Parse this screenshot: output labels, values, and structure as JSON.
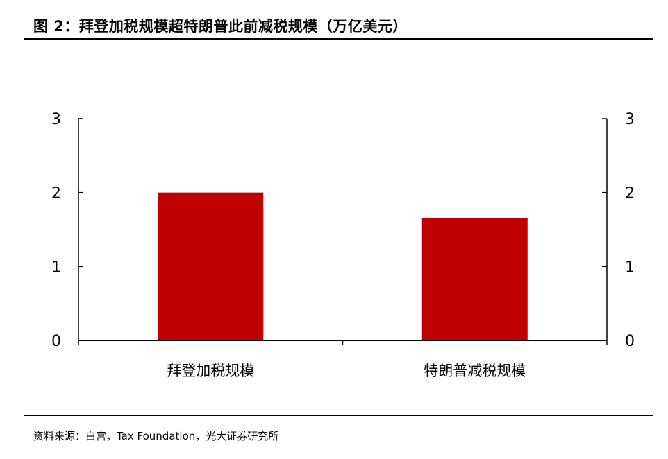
{
  "title": "图 2：拜登加税规模超特朗普此前减税规模（万亿美元）",
  "source": "资料来源：白宫，Tax Foundation，光大证券研究所",
  "colors": {
    "bar": "#C00000",
    "axis": "#000000",
    "text": "#000000"
  },
  "chart_data": {
    "type": "bar",
    "title": "拜登加税规模超特朗普此前减税规模（万亿美元）",
    "categories": [
      "拜登加税规模",
      "特朗普减税规模"
    ],
    "values": [
      2.0,
      1.65
    ],
    "ylim": [
      0,
      3
    ],
    "yticks": [
      0,
      1,
      2,
      3
    ],
    "y2ticks": [
      0,
      1,
      2,
      3
    ],
    "secondary_axis": true,
    "grid": false,
    "legend": "none",
    "xlabel": "",
    "ylabel": ""
  }
}
